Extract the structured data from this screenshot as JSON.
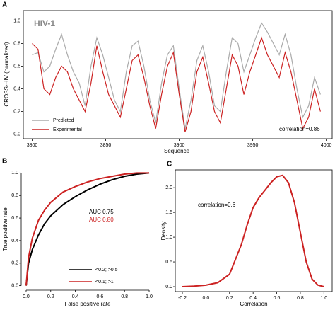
{
  "chart_data": [
    {
      "type": "line",
      "label": "A",
      "title": "HIV-1",
      "x_label": "Sequence",
      "y_label": "CROSS-HIV (normalized)",
      "x": [
        3800,
        3804,
        3808,
        3812,
        3816,
        3820,
        3824,
        3828,
        3832,
        3836,
        3840,
        3844,
        3848,
        3852,
        3856,
        3860,
        3864,
        3868,
        3872,
        3876,
        3880,
        3884,
        3888,
        3892,
        3896,
        3900,
        3904,
        3908,
        3912,
        3916,
        3920,
        3924,
        3928,
        3932,
        3936,
        3940,
        3944,
        3948,
        3952,
        3956,
        3960,
        3964,
        3968,
        3972,
        3976,
        3980,
        3984,
        3988,
        3992,
        3996
      ],
      "series": [
        {
          "name": "Predicted",
          "color": "#aaaaaa",
          "values": [
            0.7,
            0.72,
            0.55,
            0.6,
            0.75,
            0.88,
            0.7,
            0.55,
            0.45,
            0.25,
            0.6,
            0.85,
            0.7,
            0.5,
            0.3,
            0.2,
            0.55,
            0.78,
            0.82,
            0.6,
            0.3,
            0.1,
            0.45,
            0.7,
            0.78,
            0.4,
            0.05,
            0.3,
            0.65,
            0.78,
            0.55,
            0.25,
            0.2,
            0.55,
            0.85,
            0.8,
            0.55,
            0.7,
            0.85,
            0.98,
            0.9,
            0.8,
            0.7,
            0.88,
            0.7,
            0.4,
            0.15,
            0.25,
            0.5,
            0.35
          ]
        },
        {
          "name": "Experimental",
          "color": "#cc2222",
          "values": [
            0.8,
            0.75,
            0.4,
            0.35,
            0.5,
            0.6,
            0.55,
            0.4,
            0.3,
            0.2,
            0.45,
            0.78,
            0.55,
            0.35,
            0.25,
            0.15,
            0.4,
            0.65,
            0.7,
            0.5,
            0.25,
            0.05,
            0.35,
            0.6,
            0.72,
            0.35,
            0.02,
            0.2,
            0.55,
            0.68,
            0.45,
            0.2,
            0.1,
            0.4,
            0.7,
            0.6,
            0.35,
            0.55,
            0.7,
            0.85,
            0.7,
            0.6,
            0.5,
            0.72,
            0.55,
            0.3,
            0.05,
            0.15,
            0.4,
            0.2
          ]
        }
      ],
      "annotations": [
        {
          "text": "correlation=0.86",
          "color": "#000000"
        }
      ],
      "xlim": [
        3794,
        4004
      ],
      "xticks": [
        3800,
        3850,
        3900,
        3950,
        4000
      ],
      "ylim": [
        -0.04,
        1.09
      ],
      "yticks": [
        {
          "value": 0,
          "label": "0.0"
        },
        0.2,
        0.4,
        0.6,
        0.8,
        {
          "value": 1,
          "label": "1.0"
        }
      ],
      "legend": "lower left"
    },
    {
      "type": "line",
      "label": "B",
      "x_label": "False positive rate",
      "y_label": "True positive rate",
      "x": [
        0,
        0.02,
        0.05,
        0.1,
        0.15,
        0.2,
        0.3,
        0.4,
        0.5,
        0.6,
        0.7,
        0.8,
        0.9,
        1
      ],
      "series": [
        {
          "name": "<0.2; >0.5",
          "color": "#000000",
          "values": [
            0,
            0.2,
            0.32,
            0.45,
            0.55,
            0.62,
            0.72,
            0.79,
            0.85,
            0.9,
            0.94,
            0.97,
            0.99,
            1
          ]
        },
        {
          "name": "<0.1; >1",
          "color": "#cc2222",
          "values": [
            0,
            0.25,
            0.42,
            0.58,
            0.67,
            0.74,
            0.83,
            0.88,
            0.92,
            0.95,
            0.97,
            0.99,
            1,
            1
          ]
        }
      ],
      "annotations": [
        {
          "text": "AUC 0.75",
          "color": "#000000"
        },
        {
          "text": "AUC 0.80",
          "color": "#cc2222"
        }
      ],
      "xlim": [
        -0.04,
        1.04
      ],
      "xticks": [
        {
          "value": 0,
          "label": "0.0"
        },
        0.2,
        0.4,
        0.6,
        0.8,
        {
          "value": 1,
          "label": "1.0"
        }
      ],
      "ylim": [
        -0.04,
        1.04
      ],
      "yticks": [
        {
          "value": 0,
          "label": "0.0"
        },
        0.2,
        0.4,
        0.6,
        0.8,
        {
          "value": 1,
          "label": "1.0"
        }
      ],
      "legend": "lower right"
    },
    {
      "type": "line",
      "label": "C",
      "x_label": "Correlation",
      "y_label": "Density",
      "x": [
        -0.2,
        -0.1,
        0,
        0.1,
        0.2,
        0.3,
        0.35,
        0.4,
        0.45,
        0.5,
        0.55,
        0.6,
        0.65,
        0.7,
        0.75,
        0.8,
        0.85,
        0.9,
        0.95,
        1.0
      ],
      "series": [
        {
          "color": "#cc2222",
          "values": [
            0,
            0.01,
            0.03,
            0.08,
            0.25,
            0.85,
            1.25,
            1.6,
            1.8,
            1.95,
            2.1,
            2.22,
            2.25,
            2.1,
            1.7,
            1.1,
            0.5,
            0.15,
            0.03,
            0
          ]
        }
      ],
      "annotations": [
        {
          "text": "correlation=0.6",
          "color": "#000000"
        }
      ],
      "xlim": [
        -0.26,
        1.07
      ],
      "xticks": [
        -0.2,
        {
          "value": 0,
          "label": "0.0"
        },
        0.2,
        0.4,
        0.6,
        0.8,
        {
          "value": 1,
          "label": "1.0"
        }
      ],
      "ylim": [
        -0.1,
        2.36
      ],
      "yticks": [
        {
          "value": 0,
          "label": "0.0"
        },
        0.5,
        {
          "value": 1,
          "label": "1.0"
        },
        1.5,
        {
          "value": 2,
          "label": "2.0"
        }
      ]
    }
  ]
}
